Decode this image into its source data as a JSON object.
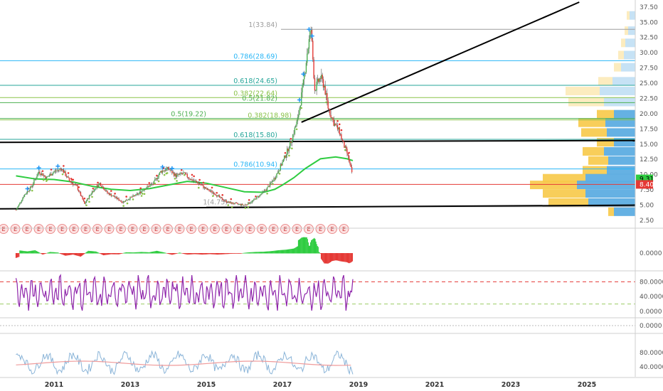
{
  "chart_data": {
    "type": "line",
    "main": {
      "ylim": [
        1.8,
        38.3
      ],
      "yticks": [
        "2.50",
        "5.00",
        "7.50",
        "10.00",
        "12.50",
        "15.00",
        "17.50",
        "20.00",
        "22.50",
        "25.00",
        "27.50",
        "30.00",
        "32.50",
        "35.00",
        "37.50"
      ],
      "price_series": [
        {
          "date": "2010.0",
          "value": 4.2
        },
        {
          "date": "2010.2",
          "value": 6.5
        },
        {
          "date": "2010.4",
          "value": 8.0
        },
        {
          "date": "2010.6",
          "value": 10.5
        },
        {
          "date": "2010.8",
          "value": 9.5
        },
        {
          "date": "2011.0",
          "value": 10.5
        },
        {
          "date": "2011.2",
          "value": 11.0
        },
        {
          "date": "2011.4",
          "value": 9.0
        },
        {
          "date": "2011.6",
          "value": 8.0
        },
        {
          "date": "2011.8",
          "value": 5.2
        },
        {
          "date": "2012.0",
          "value": 7.2
        },
        {
          "date": "2012.2",
          "value": 8.6
        },
        {
          "date": "2012.4",
          "value": 7.0
        },
        {
          "date": "2012.6",
          "value": 6.3
        },
        {
          "date": "2012.8",
          "value": 5.5
        },
        {
          "date": "2013.0",
          "value": 6.2
        },
        {
          "date": "2013.2",
          "value": 6.8
        },
        {
          "date": "2013.4",
          "value": 7.8
        },
        {
          "date": "2013.6",
          "value": 8.5
        },
        {
          "date": "2013.8",
          "value": 10.5
        },
        {
          "date": "2014.0",
          "value": 11.0
        },
        {
          "date": "2014.2",
          "value": 9.8
        },
        {
          "date": "2014.4",
          "value": 10.2
        },
        {
          "date": "2014.6",
          "value": 9.2
        },
        {
          "date": "2014.8",
          "value": 8.6
        },
        {
          "date": "2015.0",
          "value": 7.6
        },
        {
          "date": "2015.2",
          "value": 7.0
        },
        {
          "date": "2015.4",
          "value": 6.0
        },
        {
          "date": "2015.6",
          "value": 5.4
        },
        {
          "date": "2015.8",
          "value": 5.2
        },
        {
          "date": "2016.0",
          "value": 5.0
        },
        {
          "date": "2016.2",
          "value": 5.6
        },
        {
          "date": "2016.4",
          "value": 6.6
        },
        {
          "date": "2016.6",
          "value": 7.8
        },
        {
          "date": "2016.8",
          "value": 9.5
        },
        {
          "date": "2017.0",
          "value": 12.0
        },
        {
          "date": "2017.2",
          "value": 15.0
        },
        {
          "date": "2017.4",
          "value": 19.0
        },
        {
          "date": "2017.55",
          "value": 25.0
        },
        {
          "date": "2017.65",
          "value": 30.0
        },
        {
          "date": "2017.75",
          "value": 33.84
        },
        {
          "date": "2017.85",
          "value": 24.0
        },
        {
          "date": "2018.0",
          "value": 26.0
        },
        {
          "date": "2018.1",
          "value": 24.5
        },
        {
          "date": "2018.2",
          "value": 21.0
        },
        {
          "date": "2018.35",
          "value": 18.5
        },
        {
          "date": "2018.5",
          "value": 17.0
        },
        {
          "date": "2018.6",
          "value": 15.0
        },
        {
          "date": "2018.7",
          "value": 13.5
        },
        {
          "date": "2018.8",
          "value": 11.0
        },
        {
          "date": "2018.85",
          "value": 9.31
        }
      ],
      "ma_series": [
        {
          "date": "2010.0",
          "value": 9.8
        },
        {
          "date": "2010.5",
          "value": 9.3
        },
        {
          "date": "2011.0",
          "value": 9.2
        },
        {
          "date": "2011.5",
          "value": 8.8
        },
        {
          "date": "2012.0",
          "value": 8.1
        },
        {
          "date": "2012.5",
          "value": 7.6
        },
        {
          "date": "2013.0",
          "value": 7.4
        },
        {
          "date": "2013.5",
          "value": 7.7
        },
        {
          "date": "2014.0",
          "value": 8.3
        },
        {
          "date": "2014.5",
          "value": 8.9
        },
        {
          "date": "2015.0",
          "value": 8.6
        },
        {
          "date": "2015.5",
          "value": 7.9
        },
        {
          "date": "2016.0",
          "value": 7.2
        },
        {
          "date": "2016.5",
          "value": 7.1
        },
        {
          "date": "2016.8",
          "value": 7.6
        },
        {
          "date": "2017.0",
          "value": 8.3
        },
        {
          "date": "2017.3",
          "value": 9.5
        },
        {
          "date": "2017.6",
          "value": 11.0
        },
        {
          "date": "2018.0",
          "value": 12.6
        },
        {
          "date": "2018.4",
          "value": 12.9
        },
        {
          "date": "2018.7",
          "value": 12.6
        },
        {
          "date": "2018.85",
          "value": 12.3
        }
      ],
      "fib_levels": [
        {
          "label": "1(33.84)",
          "value": 33.84,
          "color": "#9e9e9e"
        },
        {
          "label": "0.786(28.69)",
          "value": 28.69,
          "color": "#29b6f6"
        },
        {
          "label": "0.618(24.65)",
          "value": 24.65,
          "color": "#26a69a"
        },
        {
          "label": "0.382(22.64)",
          "value": 22.64,
          "color": "#8bc34a"
        },
        {
          "label": "0.5(21.82)",
          "value": 21.82,
          "color": "#4caf50"
        },
        {
          "label": "0.5(19.22)",
          "value": 19.22,
          "color": "#4caf50"
        },
        {
          "label": "0.382(18.98)",
          "value": 18.98,
          "color": "#8bc34a"
        },
        {
          "label": "0.618(15.80)",
          "value": 15.8,
          "color": "#26a69a"
        },
        {
          "label": "0.786(10.94)",
          "value": 10.94,
          "color": "#29b6f6"
        },
        {
          "label": "1(4.75)",
          "value": 4.75,
          "color": "#9e9e9e"
        }
      ],
      "red_level": 8.4,
      "current_price_label": "9.31",
      "red_price_label": "8.40",
      "earnings_marker": "E",
      "earnings_count": 30
    },
    "panels": [
      {
        "name": "oscillator",
        "ticks": [
          "0.0000"
        ]
      },
      {
        "name": "stochastic",
        "ticks": [
          "80.0000",
          "40.0000",
          "0.0000"
        ]
      },
      {
        "name": "blank",
        "ticks": [
          "0.0000"
        ]
      },
      {
        "name": "rsi",
        "ticks": [
          "80.0000",
          "40.0000"
        ]
      }
    ],
    "x_axis": {
      "ticks": [
        "2011",
        "2013",
        "2015",
        "2017",
        "2019",
        "2021",
        "2023",
        "2025"
      ]
    },
    "colors": {
      "up": "#4caf50",
      "down": "#e53935",
      "ma": "#2ecc40",
      "trendline": "#000000",
      "vp_up": "#5dade2",
      "vp_down": "#f7c948",
      "stoch": "#8e24aa",
      "rsi": "#8ab4d8",
      "rsi_ma": "#ef9a9a"
    }
  }
}
